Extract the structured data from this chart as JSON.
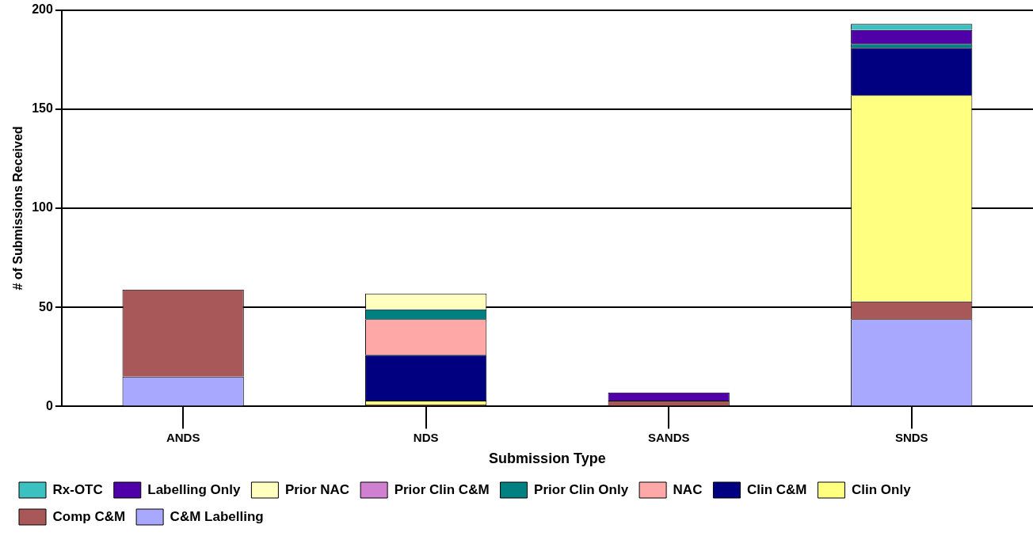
{
  "chart_data": {
    "type": "bar",
    "stacked": true,
    "xlabel": "Submission Type",
    "ylabel": "# of Submissions Received",
    "categories": [
      "ANDS",
      "NDS",
      "SANDS",
      "SNDS"
    ],
    "series": [
      {
        "name": "C&M Labelling",
        "color": "#a8a8ff",
        "values": [
          15,
          0,
          0,
          44
        ]
      },
      {
        "name": "Comp C&M",
        "color": "#a85858",
        "values": [
          44,
          1,
          3,
          9
        ]
      },
      {
        "name": "Clin Only",
        "color": "#ffff80",
        "values": [
          0,
          2,
          0,
          104
        ]
      },
      {
        "name": "Clin C&M",
        "color": "#000080",
        "values": [
          0,
          23,
          0,
          24
        ]
      },
      {
        "name": "NAC",
        "color": "#ffa8a8",
        "values": [
          0,
          18,
          0,
          0
        ]
      },
      {
        "name": "Prior Clin Only",
        "color": "#008080",
        "values": [
          0,
          5,
          0,
          2
        ]
      },
      {
        "name": "Prior Clin C&M",
        "color": "#d080d0",
        "values": [
          0,
          0,
          0,
          0
        ]
      },
      {
        "name": "Prior NAC",
        "color": "#ffffc0",
        "values": [
          0,
          8,
          0,
          null
        ]
      },
      {
        "name": "Labelling Only",
        "color": "#5000a8",
        "values": [
          0,
          0,
          4,
          7
        ]
      },
      {
        "name": "Rx-OTC",
        "color": "#3cc0c0",
        "values": [
          0,
          0,
          0,
          3
        ]
      }
    ],
    "ylim": [
      0,
      200
    ],
    "yticks": [
      0,
      50,
      100,
      150,
      200
    ],
    "grid": "y",
    "legend": "bottom"
  }
}
